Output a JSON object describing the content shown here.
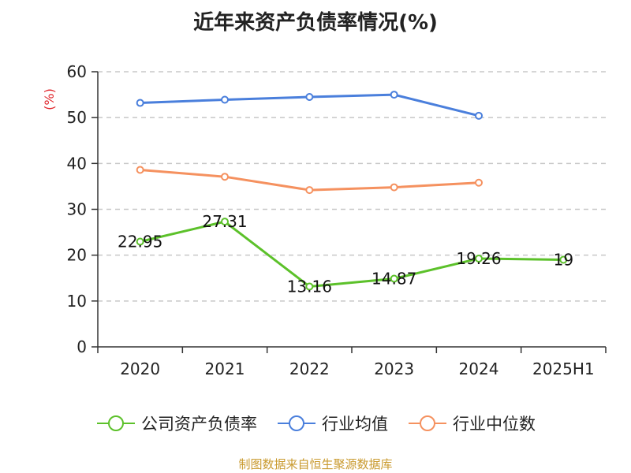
{
  "chart_data": {
    "type": "line",
    "title": "近年来资产负债率情况(%)",
    "ylabel": "(%)",
    "categories": [
      "2020",
      "2021",
      "2022",
      "2023",
      "2024",
      "2025H1"
    ],
    "ylim": [
      0,
      60
    ],
    "yticks": [
      0,
      10,
      20,
      30,
      40,
      50,
      60
    ],
    "grid": true,
    "legend_position": "bottom",
    "series": [
      {
        "name": "公司资产负债率",
        "color": "#5cc12a",
        "values": [
          22.95,
          27.31,
          13.16,
          14.87,
          19.26,
          19
        ],
        "labels": [
          "22.95",
          "27.31",
          "13.16",
          "14.87",
          "19.26",
          "19"
        ]
      },
      {
        "name": "行业均值",
        "color": "#4a7fdc",
        "values": [
          53.2,
          53.9,
          54.5,
          55.0,
          50.4,
          null
        ]
      },
      {
        "name": "行业中位数",
        "color": "#f5915f",
        "values": [
          38.6,
          37.1,
          34.2,
          34.8,
          35.8,
          null
        ]
      }
    ]
  },
  "legend": {
    "items": [
      {
        "label": "公司资产负债率",
        "color": "#5cc12a"
      },
      {
        "label": "行业均值",
        "color": "#4a7fdc"
      },
      {
        "label": "行业中位数",
        "color": "#f5915f"
      }
    ]
  },
  "source_note": "制图数据来自恒生聚源数据库"
}
